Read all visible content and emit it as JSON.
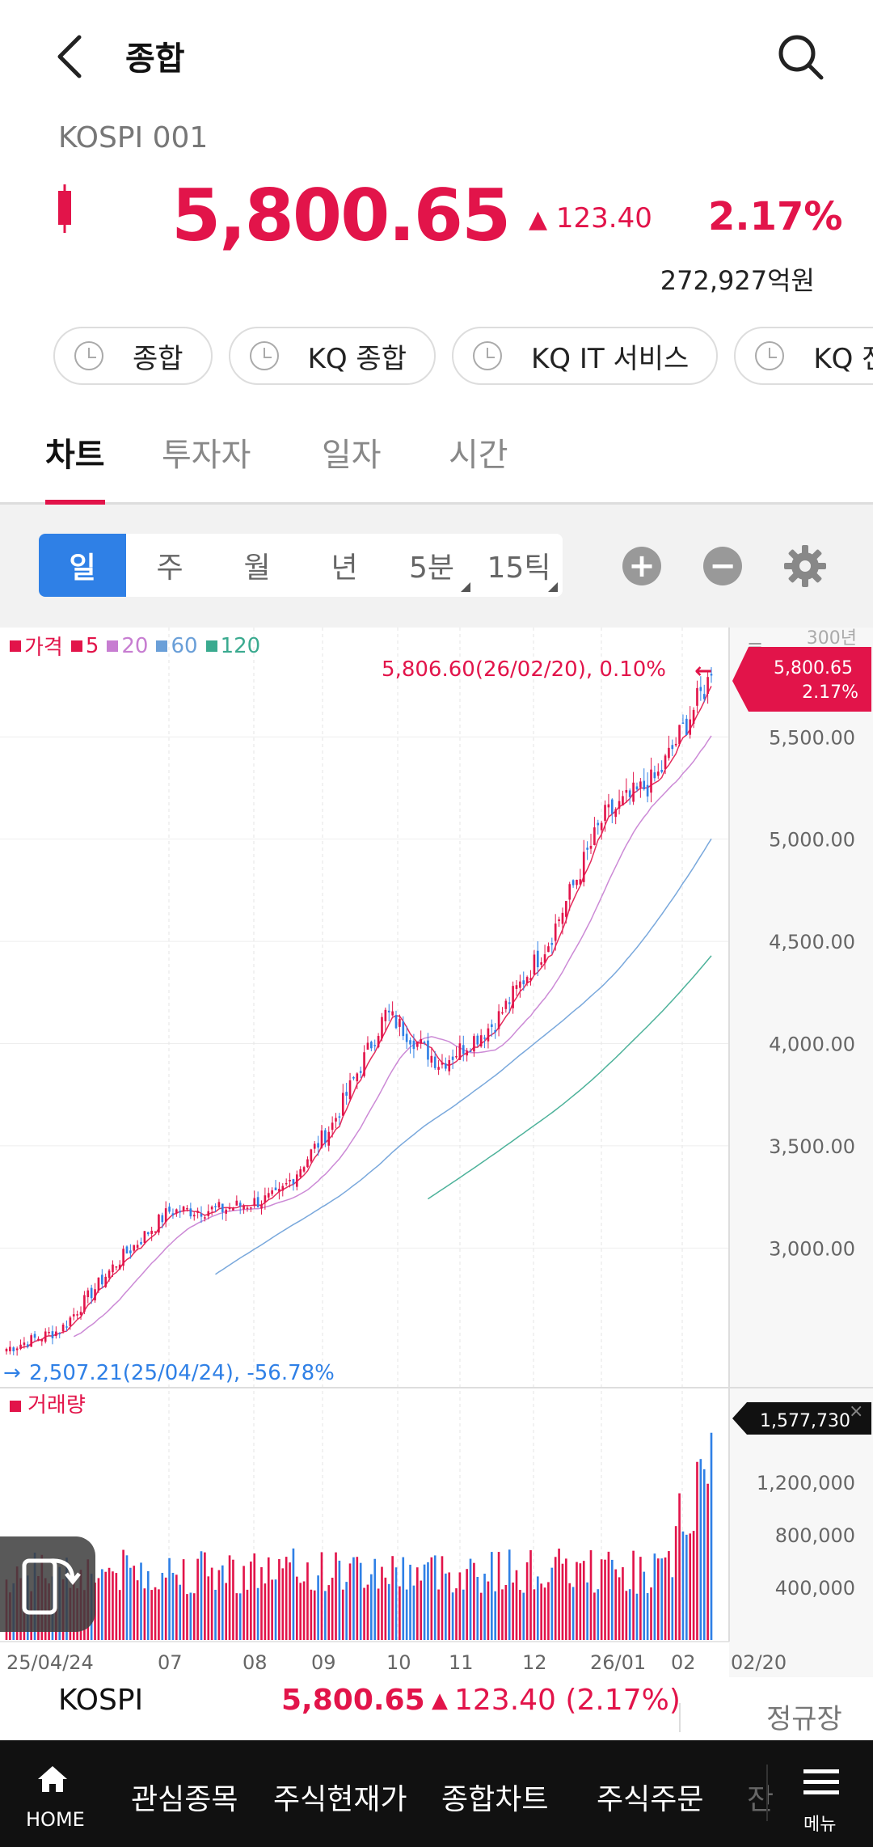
{
  "header": {
    "title": "종합",
    "code": "KOSPI 001"
  },
  "quote": {
    "price": "5,800.65",
    "change": "123.40",
    "change_pct": "2.17%",
    "volume_amount": "272,927억원",
    "up_color": "#e2144a"
  },
  "chips": [
    {
      "label": "종합"
    },
    {
      "label": "KQ 종합"
    },
    {
      "label": "KQ IT 서비스"
    },
    {
      "label": "KQ 전기/전"
    }
  ],
  "tabs": [
    {
      "label": "차트",
      "active": true
    },
    {
      "label": "투자자"
    },
    {
      "label": "일자"
    },
    {
      "label": "시간"
    }
  ],
  "periods": [
    {
      "label": "일",
      "active": true
    },
    {
      "label": "주"
    },
    {
      "label": "월"
    },
    {
      "label": "년"
    },
    {
      "label": "5분",
      "dropdown": true
    },
    {
      "label": "15틱",
      "dropdown": true
    }
  ],
  "legend": [
    {
      "label": "가격",
      "color": "#e2144a"
    },
    {
      "label": "5",
      "color": "#e2144a"
    },
    {
      "label": "20",
      "color": "#c77dd1"
    },
    {
      "label": "60",
      "color": "#6a9fd8"
    },
    {
      "label": "120",
      "color": "#3aaa8f"
    }
  ],
  "chart_data": {
    "type": "candlestick",
    "x_tick_labels": [
      "25/04/24",
      "07",
      "08",
      "09",
      "10",
      "11",
      "12",
      "26/01",
      "02",
      "02/20"
    ],
    "y_tick_labels": [
      "5,500.00",
      "5,000.00",
      "4,500.00",
      "4,000.00",
      "3,500.00",
      "3,000.00"
    ],
    "y_ticks": [
      5500,
      5000,
      4500,
      4000,
      3500,
      3000
    ],
    "ylim": [
      2420,
      5940
    ],
    "high_annotation": "5,806.60(26/02/20), 0.10%",
    "low_annotation": "2,507.21(25/04/24), -56.78%",
    "last_price_label": "5,800.65",
    "last_pct_label": "2.17%",
    "top_axis_partial": "300년",
    "close_approx": [
      {
        "date": "25/04/24",
        "close": 2507
      },
      {
        "date": "25/05",
        "close": 2600
      },
      {
        "date": "25/06",
        "close": 2920
      },
      {
        "date": "25/07",
        "close": 3180
      },
      {
        "date": "25/08",
        "close": 3190
      },
      {
        "date": "25/09",
        "close": 3250
      },
      {
        "date": "25/10",
        "close": 3600
      },
      {
        "date": "25/11",
        "close": 4150
      },
      {
        "date": "25/11m",
        "close": 3900
      },
      {
        "date": "25/12",
        "close": 4100
      },
      {
        "date": "26/01",
        "close": 4500
      },
      {
        "date": "26/01m",
        "close": 5100
      },
      {
        "date": "26/02",
        "close": 5300
      },
      {
        "date": "26/02/20",
        "close": 5800
      }
    ],
    "volume": {
      "title": "거래량",
      "last_label": "1,577,730",
      "y_tick_labels": [
        "1,200,000",
        "800,000",
        "400,000"
      ],
      "y_ticks": [
        1200000,
        800000,
        400000
      ],
      "ylim": [
        0,
        1650000
      ]
    }
  },
  "kospi_bar": {
    "name": "KOSPI",
    "price": "5,800.65",
    "change": "123.40 (2.17%)",
    "session": "정규장"
  },
  "bottom_nav": [
    {
      "label": "HOME"
    },
    {
      "label": "관심종목"
    },
    {
      "label": "주식현재가"
    },
    {
      "label": "종합차트"
    },
    {
      "label": "주식주문"
    },
    {
      "label": "잔"
    },
    {
      "label": "메뉴"
    }
  ]
}
